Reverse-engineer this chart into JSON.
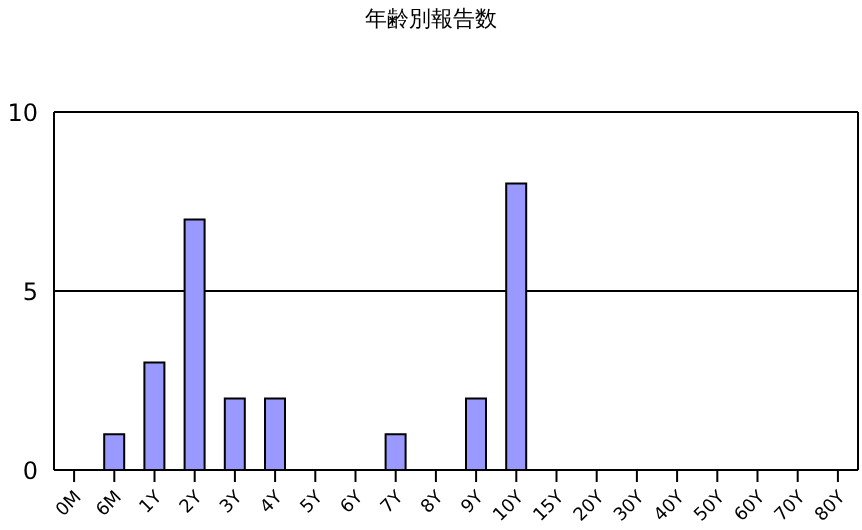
{
  "chart_data": {
    "type": "bar",
    "title": "年齢別報告数",
    "categories": [
      "0M",
      "6M",
      "1Y",
      "2Y",
      "3Y",
      "4Y",
      "5Y",
      "6Y",
      "7Y",
      "8Y",
      "9Y",
      "10Y",
      "15Y",
      "20Y",
      "30Y",
      "40Y",
      "50Y",
      "60Y",
      "70Y",
      "80Y"
    ],
    "values": [
      0,
      1,
      3,
      7,
      2,
      2,
      0,
      0,
      1,
      0,
      2,
      8,
      0,
      0,
      0,
      0,
      0,
      0,
      0,
      0
    ],
    "color": "#9999ff",
    "ylim": [
      0,
      10
    ],
    "yticks": [
      0,
      5,
      10
    ],
    "grid": "y"
  }
}
